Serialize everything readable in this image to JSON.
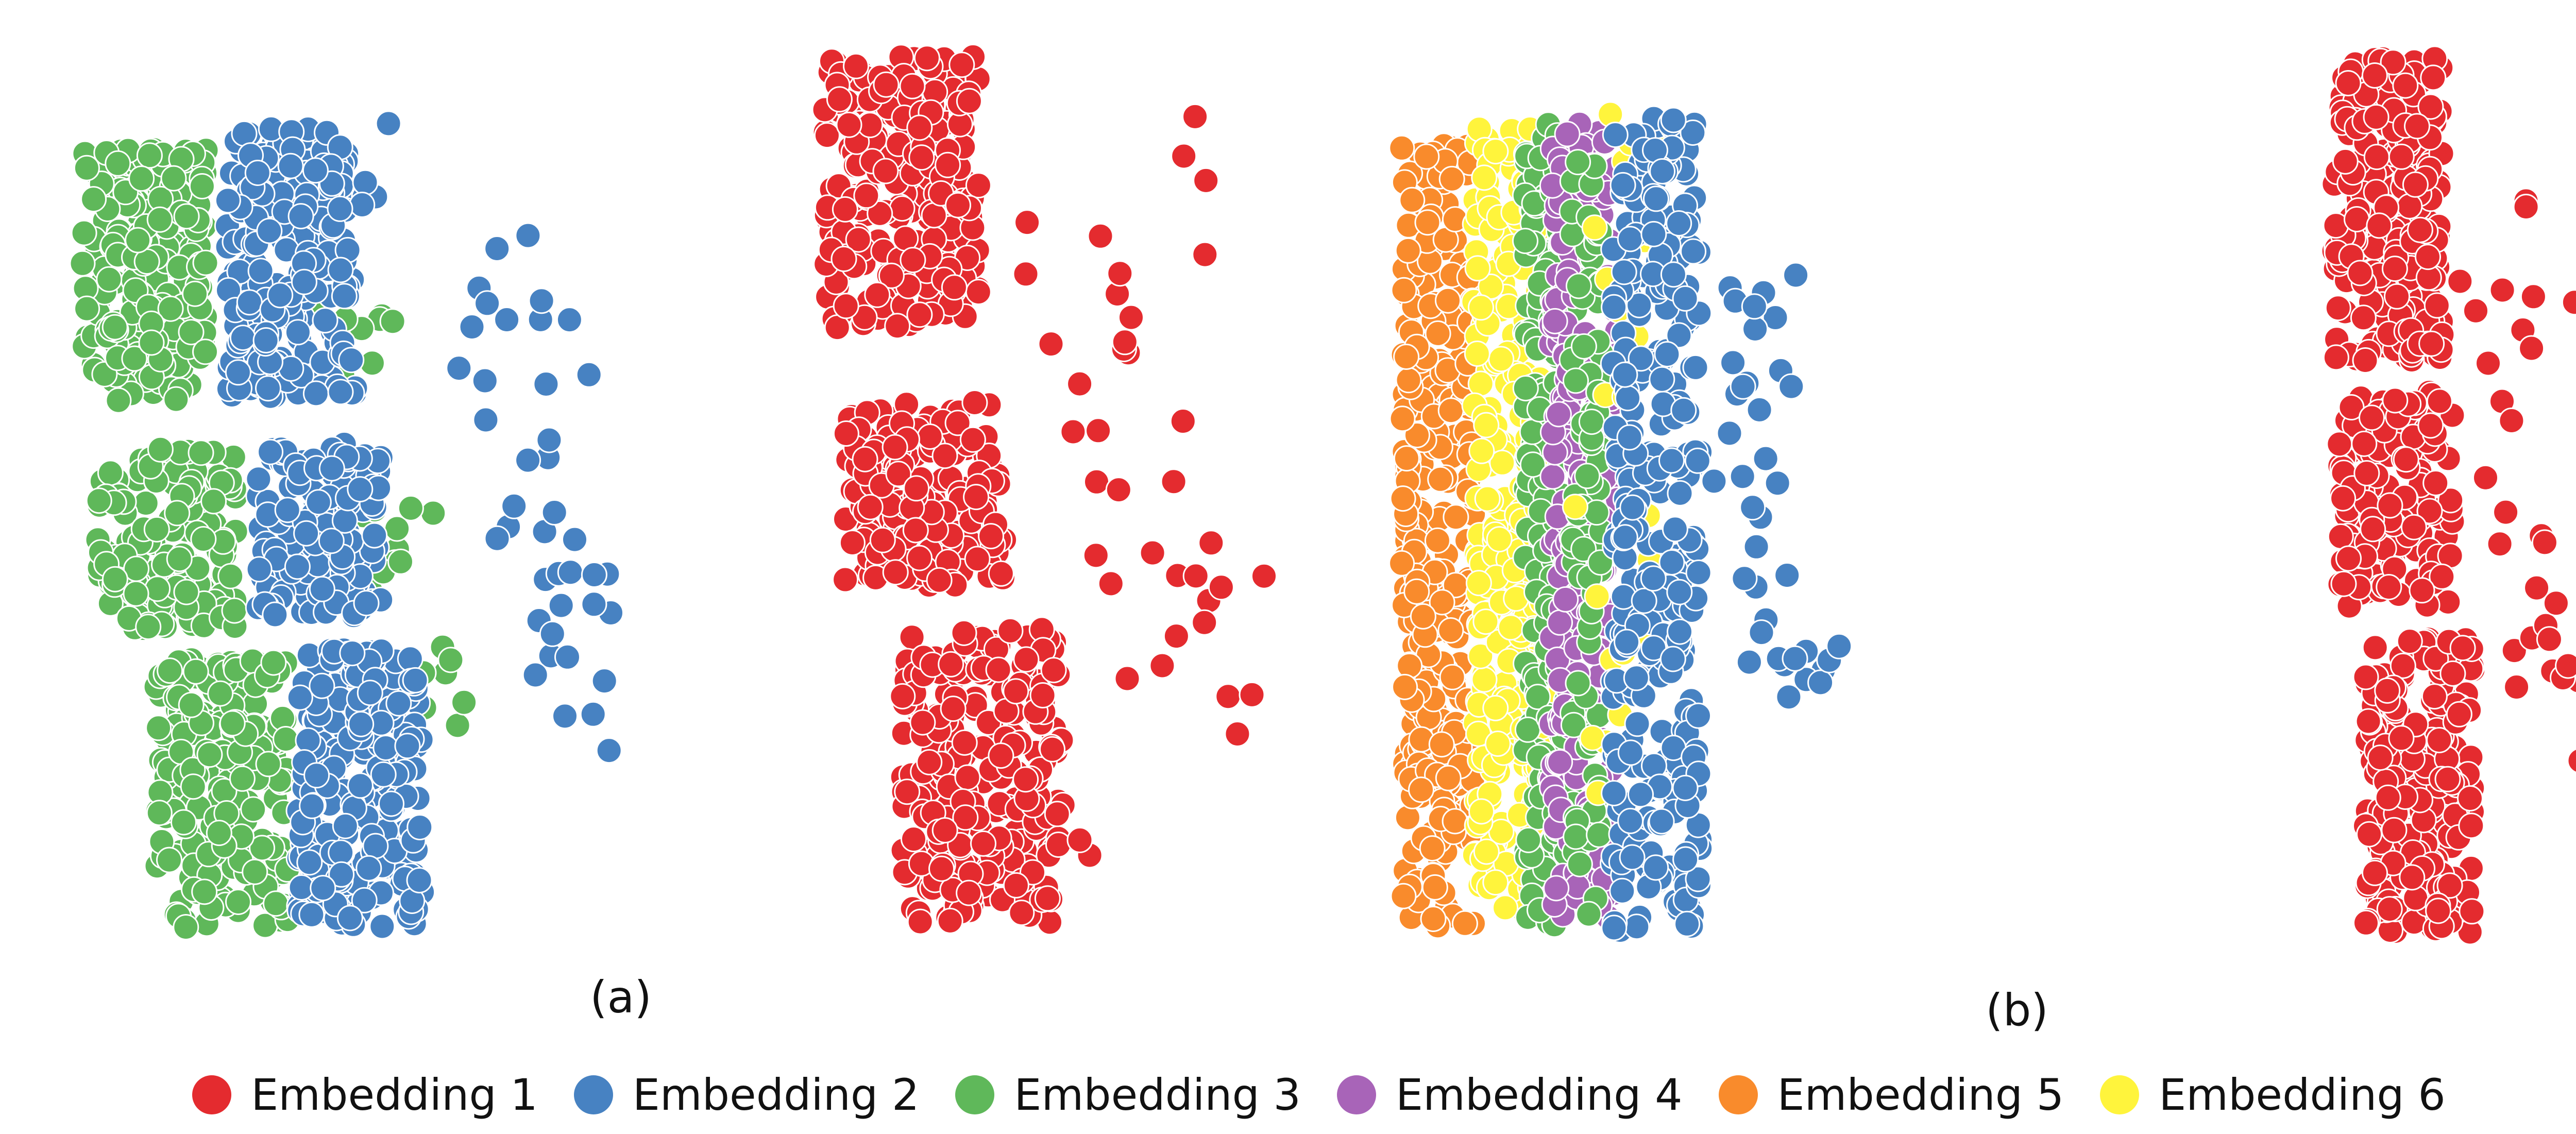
{
  "chart_data": [
    {
      "type": "scatter",
      "panel": "(a)",
      "series": [
        {
          "legend_ref": "Embedding 3",
          "color": "#5fb85a"
        },
        {
          "legend_ref": "Embedding 2",
          "color": "#4782c2"
        },
        {
          "legend_ref": "Embedding 1",
          "color": "#e42b2f"
        }
      ]
    },
    {
      "type": "scatter",
      "panel": "(b)",
      "series": [
        {
          "legend_ref": "Embedding 5",
          "color": "#f98b2c"
        },
        {
          "legend_ref": "Embedding 6",
          "color": "#fff43c"
        },
        {
          "legend_ref": "Embedding 3",
          "color": "#5fb85a"
        },
        {
          "legend_ref": "Embedding 4",
          "color": "#a864b8"
        },
        {
          "legend_ref": "Embedding 2",
          "color": "#4782c2"
        },
        {
          "legend_ref": "Embedding 1",
          "color": "#e42b2f"
        }
      ]
    }
  ],
  "labels": {
    "panel_a": "(a)",
    "panel_b": "(b)"
  },
  "legend": [
    {
      "label": "Embedding 1",
      "color": "#e42b2f"
    },
    {
      "label": "Embedding 2",
      "color": "#4782c2"
    },
    {
      "label": "Embedding 3",
      "color": "#5fb85a"
    },
    {
      "label": "Embedding 4",
      "color": "#a864b8"
    },
    {
      "label": "Embedding 5",
      "color": "#f98b2c"
    },
    {
      "label": "Embedding 6",
      "color": "#fff43c"
    }
  ]
}
